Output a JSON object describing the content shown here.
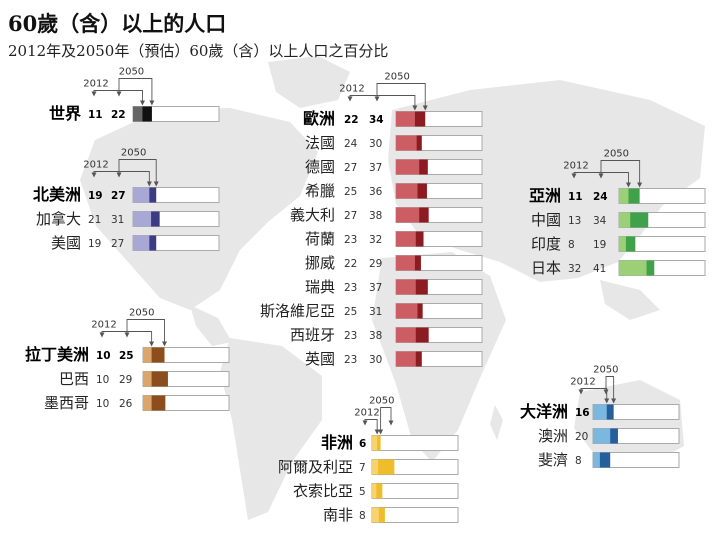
{
  "title": "60歲（含）以上的人口",
  "subtitle": "2012年及2050年（預估）60歲（含）以上人口之百分比",
  "year_labels": {
    "y2012": "2012",
    "y2050": "2050"
  },
  "colors": {
    "world": [
      "#666666",
      "#111111"
    ],
    "north_america": [
      "#a8a8d6",
      "#3c3c85"
    ],
    "latin_america": [
      "#dca56b",
      "#8b4e1c"
    ],
    "europe": [
      "#cc5d63",
      "#8c1c22"
    ],
    "asia": [
      "#9cd077",
      "#3fa24a"
    ],
    "africa": [
      "#f7d26e",
      "#f0bd2a"
    ],
    "oceania": [
      "#7ab8e0",
      "#245f9a"
    ],
    "map": "#e7e7e7",
    "track_border": "#aaaaaa"
  },
  "chart_data": {
    "type": "bar",
    "title": "60歲（含）以上的人口",
    "subtitle": "2012年及2050年（預估）60歲（含）以上人口之百分比",
    "series_names": [
      "2012",
      "2050"
    ],
    "groups": [
      {
        "key": "world",
        "name": "世界",
        "rows": [
          {
            "name": "世界",
            "v2012": 11,
            "v2050": 22
          }
        ]
      },
      {
        "key": "europe",
        "name": "歐洲",
        "rows": [
          {
            "name": "歐洲",
            "v2012": 22,
            "v2050": 34
          },
          {
            "name": "法國",
            "v2012": 24,
            "v2050": 30
          },
          {
            "name": "德國",
            "v2012": 27,
            "v2050": 37
          },
          {
            "name": "希臘",
            "v2012": 25,
            "v2050": 36
          },
          {
            "name": "義大利",
            "v2012": 27,
            "v2050": 38
          },
          {
            "name": "荷蘭",
            "v2012": 23,
            "v2050": 32
          },
          {
            "name": "挪威",
            "v2012": 22,
            "v2050": 29
          },
          {
            "name": "瑞典",
            "v2012": 23,
            "v2050": 37
          },
          {
            "name": "斯洛維尼亞",
            "v2012": 25,
            "v2050": 31
          },
          {
            "name": "西班牙",
            "v2012": 23,
            "v2050": 38
          },
          {
            "name": "英國",
            "v2012": 23,
            "v2050": 30
          }
        ]
      },
      {
        "key": "north_america",
        "name": "北美洲",
        "rows": [
          {
            "name": "北美洲",
            "v2012": 19,
            "v2050": 27
          },
          {
            "name": "加拿大",
            "v2012": 21,
            "v2050": 31
          },
          {
            "name": "美國",
            "v2012": 19,
            "v2050": 27
          }
        ]
      },
      {
        "key": "asia",
        "name": "亞洲",
        "rows": [
          {
            "name": "亞洲",
            "v2012": 11,
            "v2050": 24
          },
          {
            "name": "中國",
            "v2012": 13,
            "v2050": 34
          },
          {
            "name": "印度",
            "v2012": 8,
            "v2050": 19
          },
          {
            "name": "日本",
            "v2012": 32,
            "v2050": 41
          }
        ]
      },
      {
        "key": "latin_america",
        "name": "拉丁美洲",
        "rows": [
          {
            "name": "拉丁美洲",
            "v2012": 10,
            "v2050": 25
          },
          {
            "name": "巴西",
            "v2012": 10,
            "v2050": 29
          },
          {
            "name": "墨西哥",
            "v2012": 10,
            "v2050": 26
          }
        ]
      },
      {
        "key": "oceania",
        "name": "大洋洲",
        "rows": [
          {
            "name": "大洋洲",
            "v2012": 16,
            "v2050": 24
          },
          {
            "name": "澳洲",
            "v2012": 20,
            "v2050": 29
          },
          {
            "name": "斐濟",
            "v2012": 8,
            "v2050": 20
          }
        ]
      },
      {
        "key": "africa",
        "name": "非洲",
        "rows": [
          {
            "name": "非洲",
            "v2012": 6,
            "v2050": 10
          },
          {
            "name": "阿爾及利亞",
            "v2012": 7,
            "v2050": 26
          },
          {
            "name": "衣索比亞",
            "v2012": 5,
            "v2050": 12
          },
          {
            "name": "南非",
            "v2012": 8,
            "v2050": 15
          }
        ]
      }
    ],
    "xlim": [
      0,
      100
    ]
  }
}
